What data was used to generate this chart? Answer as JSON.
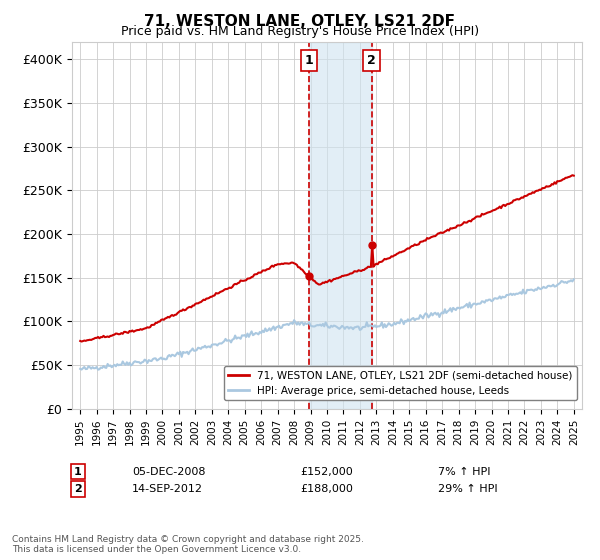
{
  "title": "71, WESTON LANE, OTLEY, LS21 2DF",
  "subtitle": "Price paid vs. HM Land Registry's House Price Index (HPI)",
  "ylabel_ticks": [
    "£0",
    "£50K",
    "£100K",
    "£150K",
    "£200K",
    "£250K",
    "£300K",
    "£350K",
    "£400K"
  ],
  "ytick_vals": [
    0,
    50000,
    100000,
    150000,
    200000,
    250000,
    300000,
    350000,
    400000
  ],
  "ylim": [
    0,
    420000
  ],
  "xlim_start": 1994.5,
  "xlim_end": 2025.5,
  "marker1_x": 2008.92,
  "marker1_y": 152000,
  "marker1_label": "1",
  "marker1_date": "05-DEC-2008",
  "marker1_price": "£152,000",
  "marker1_hpi": "7% ↑ HPI",
  "marker2_x": 2012.71,
  "marker2_y": 188000,
  "marker2_label": "2",
  "marker2_date": "14-SEP-2012",
  "marker2_price": "£188,000",
  "marker2_hpi": "29% ↑ HPI",
  "line1_color": "#cc0000",
  "line2_color": "#aac8e0",
  "shade_color": "#d0e4f0",
  "dashed_color": "#cc0000",
  "legend_label1": "71, WESTON LANE, OTLEY, LS21 2DF (semi-detached house)",
  "legend_label2": "HPI: Average price, semi-detached house, Leeds",
  "footer": "Contains HM Land Registry data © Crown copyright and database right 2025.\nThis data is licensed under the Open Government Licence v3.0.",
  "background_color": "#ffffff",
  "grid_color": "#cccccc"
}
